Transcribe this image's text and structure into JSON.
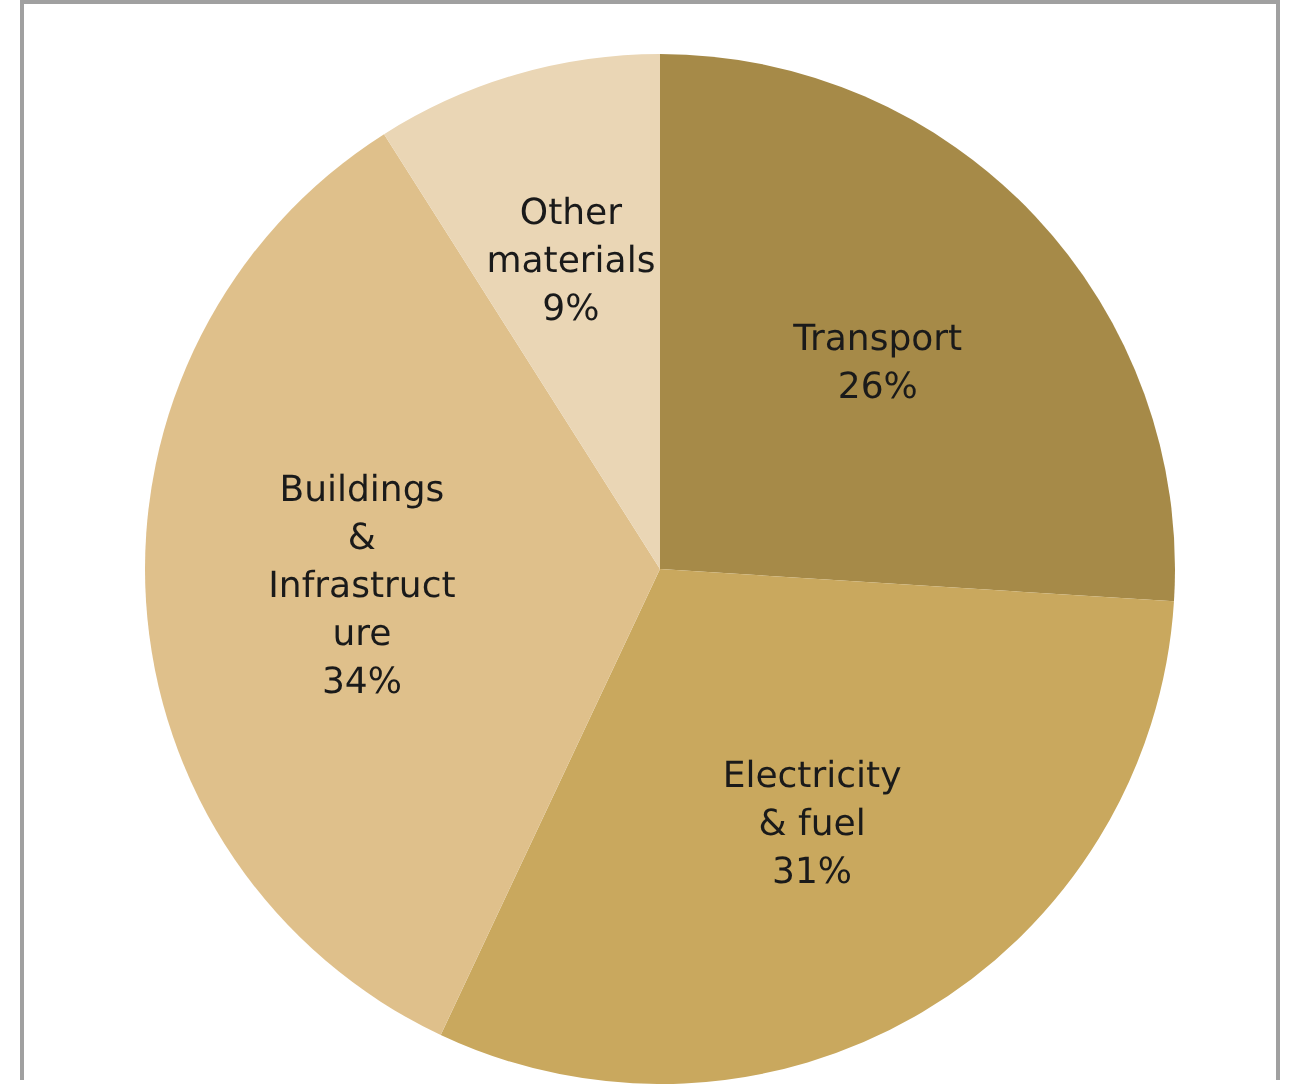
{
  "chart_data": {
    "type": "pie",
    "categories": [
      "Transport",
      "Electricity & fuel",
      "Buildings & Infrastructure",
      "Other materials"
    ],
    "values": [
      26,
      31,
      34,
      9
    ],
    "colors": [
      "#a68a48",
      "#c9a85e",
      "#dfc08b",
      "#ead6b5"
    ],
    "value_labels": [
      "26%",
      "31%",
      "34%",
      "9%"
    ],
    "legend": false
  }
}
